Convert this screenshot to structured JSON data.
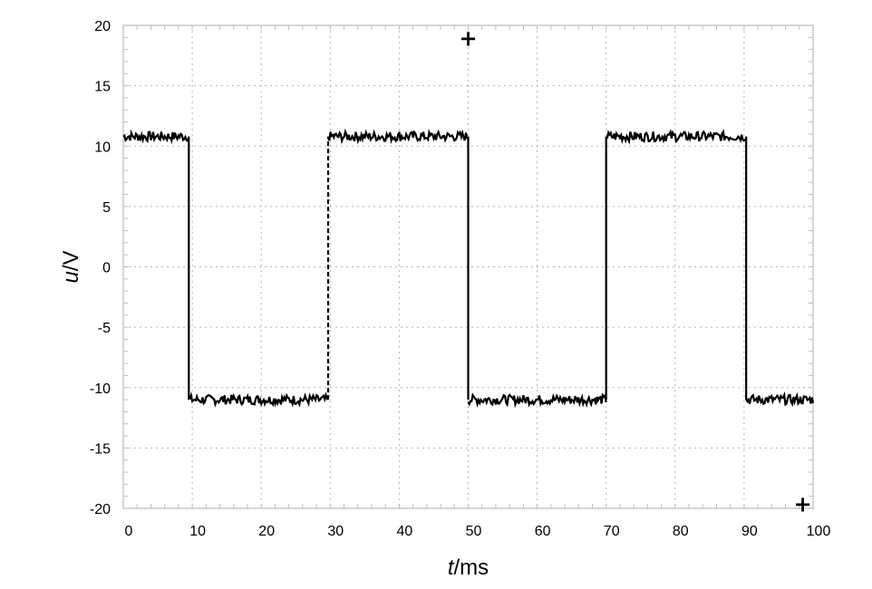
{
  "chart_data": {
    "type": "line",
    "title": "",
    "xlabel": {
      "var": "t",
      "unit": "/ms"
    },
    "ylabel": {
      "var": "u",
      "unit": "/V"
    },
    "xlim": [
      0,
      100
    ],
    "ylim": [
      -20,
      20
    ],
    "x_ticks": [
      "0",
      "10",
      "20",
      "30",
      "40",
      "50",
      "60",
      "70",
      "80",
      "90",
      "100"
    ],
    "y_ticks": [
      "20",
      "15",
      "10",
      "5",
      "0",
      "-5",
      "-10",
      "-15",
      "-20"
    ],
    "grid": true,
    "grid_style": "dotted",
    "series": [
      {
        "style": "square-wave",
        "color": "#000000",
        "points": [
          [
            0,
            10.8
          ],
          [
            9.5,
            10.8
          ],
          [
            9.5,
            -11.0
          ],
          [
            29.7,
            -11.0
          ],
          [
            29.7,
            10.8
          ],
          [
            50.0,
            10.8
          ],
          [
            50.0,
            -11.0
          ],
          [
            70.0,
            -11.0
          ],
          [
            70.0,
            10.8
          ],
          [
            90.3,
            10.8
          ],
          [
            90.3,
            -11.0
          ],
          [
            100,
            -11.0
          ]
        ],
        "dashed_transitions": [
          29.7
        ],
        "noise_amplitude": 0.4
      }
    ],
    "markers": [
      {
        "x": 50,
        "y": 19,
        "symbol": "+",
        "name": "trigger-marker-top"
      },
      {
        "x": 98.5,
        "y": -19.6,
        "symbol": "+",
        "name": "trigger-marker-bottom"
      }
    ]
  }
}
